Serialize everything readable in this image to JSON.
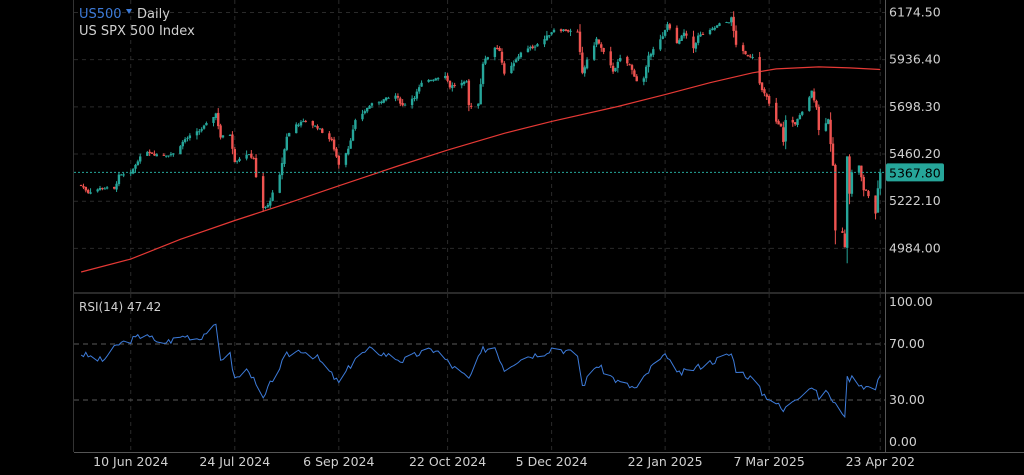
{
  "header": {
    "symbol": "US500",
    "timeframe": "Daily",
    "name": "US SPX 500 Index",
    "dropdown_icon": "triangle-down-icon"
  },
  "colors": {
    "background": "#000000",
    "grid": "#2a2a2a",
    "up": "#26a69a",
    "down": "#ef5350",
    "ma": "#e53935",
    "rsi": "#3d7bd9",
    "price_line": "#26a69a",
    "symbol": "#3d7bd9",
    "text": "#d0d0d0"
  },
  "chart_data": [
    {
      "type": "candlestick",
      "title": "US SPX 500 Index",
      "y_ticks": [
        "6174.50",
        "5936.40",
        "5698.30",
        "5460.20",
        "5222.10",
        "4984.00"
      ],
      "ylim": [
        4809,
        6240
      ],
      "current_price": "5367.80",
      "x_ticks": [
        {
          "label": "10 Jun 2024",
          "date": "2024-06-10"
        },
        {
          "label": "24 Jul 2024",
          "date": "2024-07-24"
        },
        {
          "label": "6 Sep 2024",
          "date": "2024-09-06"
        },
        {
          "label": "22 Oct 2024",
          "date": "2024-10-22"
        },
        {
          "label": "5 Dec 2024",
          "date": "2024-12-05"
        },
        {
          "label": "22 Jan 2025",
          "date": "2025-01-22"
        },
        {
          "label": "7 Mar 2025",
          "date": "2025-03-07"
        },
        {
          "label": "23 Apr 202",
          "date": "2025-04-23"
        }
      ],
      "close_path": [
        [
          "2024-05-20",
          5303
        ],
        [
          "2024-05-23",
          5268
        ],
        [
          "2024-05-29",
          5290
        ],
        [
          "2024-06-03",
          5282
        ],
        [
          "2024-06-05",
          5350
        ],
        [
          "2024-06-10",
          5360
        ],
        [
          "2024-06-13",
          5430
        ],
        [
          "2024-06-17",
          5475
        ],
        [
          "2024-06-20",
          5460
        ],
        [
          "2024-06-24",
          5455
        ],
        [
          "2024-06-28",
          5462
        ],
        [
          "2024-07-03",
          5535
        ],
        [
          "2024-07-09",
          5576
        ],
        [
          "2024-07-12",
          5610
        ],
        [
          "2024-07-16",
          5665
        ],
        [
          "2024-07-18",
          5545
        ],
        [
          "2024-07-22",
          5560
        ],
        [
          "2024-07-24",
          5425
        ],
        [
          "2024-07-29",
          5460
        ],
        [
          "2024-08-01",
          5440
        ],
        [
          "2024-08-02",
          5340
        ],
        [
          "2024-08-05",
          5185
        ],
        [
          "2024-08-07",
          5200
        ],
        [
          "2024-08-12",
          5350
        ],
        [
          "2024-08-15",
          5550
        ],
        [
          "2024-08-19",
          5610
        ],
        [
          "2024-08-23",
          5625
        ],
        [
          "2024-08-28",
          5595
        ],
        [
          "2024-09-03",
          5525
        ],
        [
          "2024-09-06",
          5410
        ],
        [
          "2024-09-10",
          5490
        ],
        [
          "2024-09-13",
          5625
        ],
        [
          "2024-09-19",
          5705
        ],
        [
          "2024-09-24",
          5730
        ],
        [
          "2024-09-30",
          5755
        ],
        [
          "2024-10-03",
          5705
        ],
        [
          "2024-10-08",
          5750
        ],
        [
          "2024-10-11",
          5815
        ],
        [
          "2024-10-16",
          5840
        ],
        [
          "2024-10-21",
          5860
        ],
        [
          "2024-10-23",
          5800
        ],
        [
          "2024-10-25",
          5810
        ],
        [
          "2024-10-30",
          5820
        ],
        [
          "2024-10-31",
          5705
        ],
        [
          "2024-11-04",
          5715
        ],
        [
          "2024-11-06",
          5920
        ],
        [
          "2024-11-11",
          6000
        ],
        [
          "2024-11-13",
          5985
        ],
        [
          "2024-11-15",
          5860
        ],
        [
          "2024-11-19",
          5915
        ],
        [
          "2024-11-22",
          5975
        ],
        [
          "2024-11-27",
          6000
        ],
        [
          "2024-12-02",
          6040
        ],
        [
          "2024-12-06",
          6090
        ],
        [
          "2024-12-11",
          6085
        ],
        [
          "2024-12-16",
          6070
        ],
        [
          "2024-12-18",
          5870
        ],
        [
          "2024-12-20",
          5930
        ],
        [
          "2024-12-24",
          6040
        ],
        [
          "2024-12-27",
          5970
        ],
        [
          "2024-12-31",
          5880
        ],
        [
          "2025-01-03",
          5940
        ],
        [
          "2025-01-07",
          5910
        ],
        [
          "2025-01-10",
          5830
        ],
        [
          "2025-01-13",
          5840
        ],
        [
          "2025-01-15",
          5950
        ],
        [
          "2025-01-17",
          5995
        ],
        [
          "2025-01-21",
          6050
        ],
        [
          "2025-01-23",
          6115
        ],
        [
          "2025-01-24",
          6100
        ],
        [
          "2025-01-27",
          6015
        ],
        [
          "2025-01-30",
          6070
        ],
        [
          "2025-02-03",
          5995
        ],
        [
          "2025-02-05",
          6055
        ],
        [
          "2025-02-10",
          6080
        ],
        [
          "2025-02-14",
          6115
        ],
        [
          "2025-02-18",
          6130
        ],
        [
          "2025-02-19",
          6145
        ],
        [
          "2025-02-21",
          6015
        ],
        [
          "2025-02-25",
          5960
        ],
        [
          "2025-02-28",
          5955
        ],
        [
          "2025-03-04",
          5780
        ],
        [
          "2025-03-06",
          5745
        ],
        [
          "2025-03-10",
          5620
        ],
        [
          "2025-03-12",
          5595
        ],
        [
          "2025-03-13",
          5525
        ],
        [
          "2025-03-14",
          5630
        ],
        [
          "2025-03-18",
          5615
        ],
        [
          "2025-03-21",
          5670
        ],
        [
          "2025-03-25",
          5775
        ],
        [
          "2025-03-27",
          5700
        ],
        [
          "2025-03-28",
          5580
        ],
        [
          "2025-04-01",
          5635
        ],
        [
          "2025-04-03",
          5395
        ],
        [
          "2025-04-04",
          5075
        ],
        [
          "2025-04-07",
          5060
        ],
        [
          "2025-04-08",
          4985
        ],
        [
          "2025-04-09",
          5455
        ],
        [
          "2025-04-10",
          5265
        ],
        [
          "2025-04-11",
          5365
        ],
        [
          "2025-04-14",
          5405
        ],
        [
          "2025-04-16",
          5275
        ],
        [
          "2025-04-17",
          5280
        ],
        [
          "2025-04-21",
          5155
        ],
        [
          "2025-04-22",
          5290
        ],
        [
          "2025-04-23",
          5367.8
        ]
      ],
      "moving_average": [
        [
          "2024-05-20",
          4865
        ],
        [
          "2024-06-10",
          4930
        ],
        [
          "2024-07-01",
          5030
        ],
        [
          "2024-07-24",
          5125
        ],
        [
          "2024-08-15",
          5210
        ],
        [
          "2024-09-06",
          5300
        ],
        [
          "2024-10-01",
          5400
        ],
        [
          "2024-10-22",
          5480
        ],
        [
          "2024-11-15",
          5565
        ],
        [
          "2024-12-05",
          5625
        ],
        [
          "2025-01-02",
          5700
        ],
        [
          "2025-01-22",
          5760
        ],
        [
          "2025-02-10",
          5820
        ],
        [
          "2025-02-28",
          5870
        ],
        [
          "2025-03-10",
          5890
        ],
        [
          "2025-03-28",
          5900
        ],
        [
          "2025-04-10",
          5895
        ],
        [
          "2025-04-23",
          5887
        ]
      ]
    },
    {
      "type": "line",
      "title": "RSI(14) 47.42",
      "series": [
        {
          "name": "RSI(14)",
          "current": 47.42
        }
      ],
      "y_ticks": [
        "100.00",
        "70.00",
        "30.00",
        "0.00"
      ],
      "ylim": [
        0,
        100
      ],
      "reference_lines": [
        70,
        30
      ],
      "points": [
        [
          "2024-05-20",
          63
        ],
        [
          "2024-05-29",
          58
        ],
        [
          "2024-06-05",
          70
        ],
        [
          "2024-06-12",
          74
        ],
        [
          "2024-06-17",
          78
        ],
        [
          "2024-06-21",
          70
        ],
        [
          "2024-06-26",
          72
        ],
        [
          "2024-07-03",
          76
        ],
        [
          "2024-07-09",
          74
        ],
        [
          "2024-07-12",
          79
        ],
        [
          "2024-07-16",
          82
        ],
        [
          "2024-07-18",
          60
        ],
        [
          "2024-07-22",
          62
        ],
        [
          "2024-07-24",
          45
        ],
        [
          "2024-07-30",
          52
        ],
        [
          "2024-08-02",
          40
        ],
        [
          "2024-08-05",
          30
        ],
        [
          "2024-08-09",
          45
        ],
        [
          "2024-08-15",
          62
        ],
        [
          "2024-08-21",
          66
        ],
        [
          "2024-08-28",
          60
        ],
        [
          "2024-09-06",
          42
        ],
        [
          "2024-09-13",
          60
        ],
        [
          "2024-09-19",
          66
        ],
        [
          "2024-09-27",
          62
        ],
        [
          "2024-10-03",
          58
        ],
        [
          "2024-10-11",
          64
        ],
        [
          "2024-10-17",
          66
        ],
        [
          "2024-10-24",
          54
        ],
        [
          "2024-10-31",
          45
        ],
        [
          "2024-11-06",
          66
        ],
        [
          "2024-11-11",
          68
        ],
        [
          "2024-11-15",
          52
        ],
        [
          "2024-11-22",
          60
        ],
        [
          "2024-12-02",
          64
        ],
        [
          "2024-12-06",
          68
        ],
        [
          "2024-12-16",
          62
        ],
        [
          "2024-12-18",
          40
        ],
        [
          "2024-12-24",
          55
        ],
        [
          "2025-01-02",
          43
        ],
        [
          "2025-01-10",
          38
        ],
        [
          "2025-01-17",
          55
        ],
        [
          "2025-01-23",
          62
        ],
        [
          "2025-01-27",
          48
        ],
        [
          "2025-02-07",
          55
        ],
        [
          "2025-02-19",
          63
        ],
        [
          "2025-02-21",
          52
        ],
        [
          "2025-02-28",
          45
        ],
        [
          "2025-03-04",
          35
        ],
        [
          "2025-03-10",
          28
        ],
        [
          "2025-03-13",
          22
        ],
        [
          "2025-03-17",
          30
        ],
        [
          "2025-03-25",
          40
        ],
        [
          "2025-03-28",
          32
        ],
        [
          "2025-04-01",
          36
        ],
        [
          "2025-04-03",
          28
        ],
        [
          "2025-04-08",
          20
        ],
        [
          "2025-04-09",
          45
        ],
        [
          "2025-04-11",
          46
        ],
        [
          "2025-04-16",
          40
        ],
        [
          "2025-04-21",
          38
        ],
        [
          "2025-04-23",
          47.42
        ]
      ]
    }
  ]
}
